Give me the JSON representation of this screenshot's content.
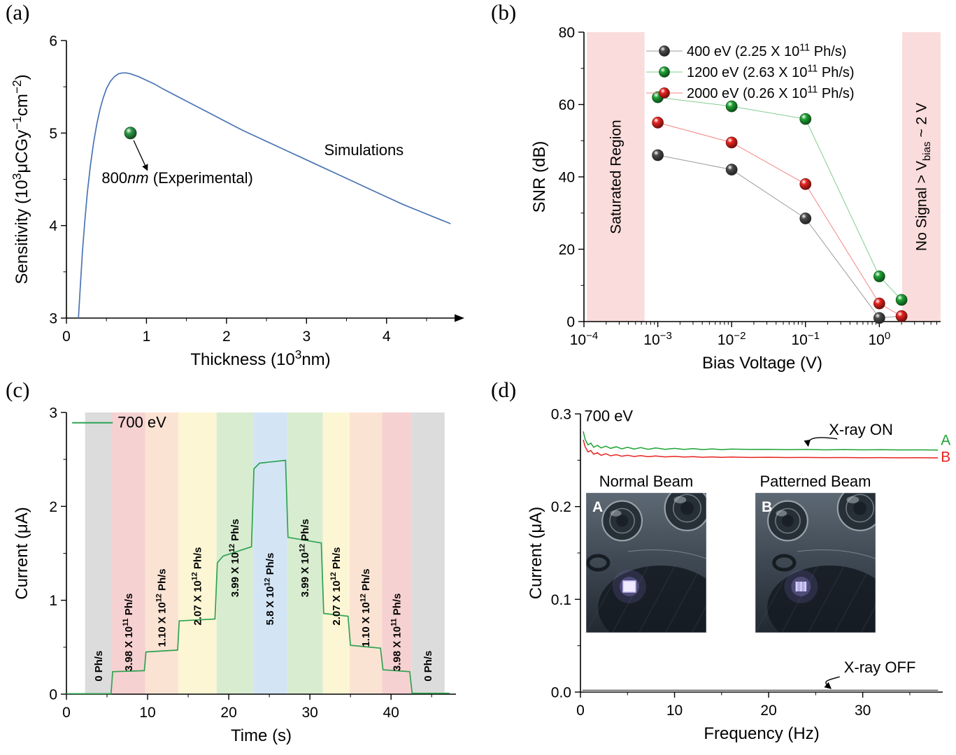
{
  "figure": {
    "background": "#ffffff"
  },
  "chart_data": [
    {
      "id": "a",
      "panel_label": "(a)",
      "type": "line",
      "xlabel_rich": [
        {
          "t": "Thickness (10"
        },
        {
          "t": "3",
          "sup": true
        },
        {
          "t": "nm)"
        }
      ],
      "ylabel_rich": [
        {
          "t": "Sensitivity (10"
        },
        {
          "t": "3",
          "sup": true
        },
        {
          "t": "μCGy"
        },
        {
          "t": "−1",
          "sup": true
        },
        {
          "t": "cm"
        },
        {
          "t": "−2",
          "sup": true
        },
        {
          "t": ")"
        }
      ],
      "xlim": [
        0,
        4.85
      ],
      "ylim": [
        3,
        6
      ],
      "xticks": [
        0,
        1,
        2,
        3,
        4
      ],
      "xtick_labels": [
        "0",
        "1",
        "2",
        "3",
        "4"
      ],
      "yticks": [
        3,
        4,
        5,
        6
      ],
      "ytick_labels": [
        "3",
        "4",
        "5",
        "6"
      ],
      "xminor_step": 0.5,
      "yminor_step": 0.5,
      "line_color": "#4a74b4",
      "simulation": {
        "x": [
          0.15,
          0.17,
          0.2,
          0.23,
          0.26,
          0.3,
          0.34,
          0.38,
          0.42,
          0.46,
          0.5,
          0.55,
          0.6,
          0.65,
          0.7,
          0.75,
          0.8,
          0.9,
          1.0,
          1.1,
          1.2,
          1.4,
          1.6,
          1.8,
          2.0,
          2.2,
          2.4,
          2.6,
          2.8,
          3.0,
          3.2,
          3.4,
          3.6,
          3.8,
          4.0,
          4.2,
          4.4,
          4.6,
          4.8
        ],
        "y": [
          3.0,
          3.3,
          3.72,
          4.05,
          4.35,
          4.65,
          4.9,
          5.1,
          5.26,
          5.38,
          5.48,
          5.56,
          5.61,
          5.64,
          5.65,
          5.65,
          5.64,
          5.61,
          5.57,
          5.53,
          5.48,
          5.39,
          5.3,
          5.21,
          5.12,
          5.03,
          4.95,
          4.87,
          4.79,
          4.71,
          4.63,
          4.55,
          4.47,
          4.39,
          4.31,
          4.23,
          4.16,
          4.09,
          4.02
        ]
      },
      "experimental_point": {
        "x": 0.8,
        "y": 5.0,
        "color": "#2f9e49"
      },
      "labels": {
        "simulations": {
          "text": "Simulations",
          "x": 3.22,
          "y": 4.76
        },
        "experimental_rich": [
          {
            "t": "800"
          },
          {
            "t": "nm",
            "italic": true
          },
          {
            "t": " (Experimental)"
          }
        ],
        "experimental_pos": {
          "x": 0.44,
          "y": 4.46
        }
      },
      "arrow": {
        "x1": 0.84,
        "y1": 4.92,
        "x2": 1.01,
        "y2": 4.6
      }
    },
    {
      "id": "b",
      "panel_label": "(b)",
      "type": "scatter",
      "xscale": "log",
      "xlabel": "Bias Voltage (V)",
      "ylabel": "SNR (dB)",
      "xlim_exp": [
        -4,
        0.83
      ],
      "ylim": [
        0,
        80
      ],
      "xtick_exps": [
        -4,
        -3,
        -2,
        -1,
        0
      ],
      "yticks": [
        0,
        20,
        40,
        60,
        80
      ],
      "ytick_labels": [
        "0",
        "20",
        "40",
        "60",
        "80"
      ],
      "x_values": [
        0.001,
        0.01,
        0.1,
        1,
        2
      ],
      "series": [
        {
          "name_rich": [
            {
              "t": "400 eV (2.25 X 10"
            },
            {
              "t": "11",
              "sup": true
            },
            {
              "t": " Ph/s)"
            }
          ],
          "color": "#4a4a4a",
          "snr_db": [
            46,
            42,
            28.5,
            1,
            1.5
          ]
        },
        {
          "name_rich": [
            {
              "t": "1200 eV (2.63 X 10"
            },
            {
              "t": "11",
              "sup": true
            },
            {
              "t": " Ph/s)"
            }
          ],
          "color": "#1ea334",
          "snr_db": [
            62,
            59.5,
            56,
            12.5,
            6
          ]
        },
        {
          "name_rich": [
            {
              "t": "2000 eV (0.26 X 10"
            },
            {
              "t": "11",
              "sup": true
            },
            {
              "t": " Ph/s)"
            }
          ],
          "color": "#e8231f",
          "snr_db": [
            55,
            49.5,
            38,
            5,
            1.5
          ]
        }
      ],
      "shaded_regions": [
        {
          "label_rich": [
            {
              "t": "Saturated Region"
            }
          ],
          "x0_exp": -3.96,
          "x1_exp": -3.18,
          "color": "#fadcdc"
        },
        {
          "label_rich": [
            {
              "t": "No Signal > V"
            },
            {
              "t": "bias",
              "sub": true
            },
            {
              "t": " ~ 2 V"
            }
          ],
          "x0_exp": 0.31,
          "x1_exp": 0.83,
          "color": "#fadcdc"
        }
      ]
    },
    {
      "id": "c",
      "panel_label": "(c)",
      "type": "line",
      "xlabel": "Time (s)",
      "ylabel": "Current (μA)",
      "xlim": [
        0,
        48
      ],
      "ylim": [
        0,
        3
      ],
      "xticks": [
        0,
        10,
        20,
        30,
        40
      ],
      "xtick_labels": [
        "0",
        "10",
        "20",
        "30",
        "40"
      ],
      "yticks": [
        0,
        1,
        2,
        3
      ],
      "ytick_labels": [
        "0",
        "1",
        "2",
        "3"
      ],
      "xminor_step": 5,
      "yminor_step": 0.5,
      "legend": {
        "label": "700 eV",
        "color": "#2fa352"
      },
      "line_color": "#2fa352",
      "flux_bands": [
        {
          "t0": 2.3,
          "t1": 5.6,
          "color": "#dcdcdc",
          "label_rich": [
            {
              "t": "0 Ph/s"
            }
          ],
          "label_yc": 0.3
        },
        {
          "t0": 5.6,
          "t1": 9.7,
          "color": "#f6d1d1",
          "label_rich": [
            {
              "t": "3.98 X 10"
            },
            {
              "t": "11",
              "sup": true
            },
            {
              "t": " Ph/s"
            }
          ],
          "label_yc": 0.66
        },
        {
          "t0": 9.7,
          "t1": 13.8,
          "color": "#fbe3d4",
          "label_rich": [
            {
              "t": "1.10 X 10"
            },
            {
              "t": "12",
              "sup": true
            },
            {
              "t": " Ph/s"
            }
          ],
          "label_yc": 0.92
        },
        {
          "t0": 13.8,
          "t1": 18.5,
          "color": "#fcf6d4",
          "label_rich": [
            {
              "t": "2.07 X 10"
            },
            {
              "t": "12",
              "sup": true
            },
            {
              "t": " Ph/s"
            }
          ],
          "label_yc": 1.15
        },
        {
          "t0": 18.5,
          "t1": 23.0,
          "color": "#d8ecd0",
          "label_rich": [
            {
              "t": "3.99 X 10"
            },
            {
              "t": "12",
              "sup": true
            },
            {
              "t": " Ph/s"
            }
          ],
          "label_yc": 1.45
        },
        {
          "t0": 23.0,
          "t1": 27.2,
          "color": "#d3e5f5",
          "label_rich": [
            {
              "t": "5.8 X 10"
            },
            {
              "t": "12",
              "sup": true
            },
            {
              "t": " Ph/s"
            }
          ],
          "label_yc": 1.12
        },
        {
          "t0": 27.2,
          "t1": 31.6,
          "color": "#d8ecd0",
          "label_rich": [
            {
              "t": "3.99 X 10"
            },
            {
              "t": "12",
              "sup": true
            },
            {
              "t": " Ph/s"
            }
          ],
          "label_yc": 1.45
        },
        {
          "t0": 31.6,
          "t1": 34.9,
          "color": "#fcf6d4",
          "label_rich": [
            {
              "t": "2.07 X 10"
            },
            {
              "t": "12",
              "sup": true
            },
            {
              "t": " Ph/s"
            }
          ],
          "label_yc": 1.15
        },
        {
          "t0": 34.9,
          "t1": 38.9,
          "color": "#fbe3d4",
          "label_rich": [
            {
              "t": "1.10 X 10"
            },
            {
              "t": "12",
              "sup": true
            },
            {
              "t": " Ph/s"
            }
          ],
          "label_yc": 0.92
        },
        {
          "t0": 38.9,
          "t1": 42.5,
          "color": "#f6d1d1",
          "label_rich": [
            {
              "t": "3.98 X 10"
            },
            {
              "t": "11",
              "sup": true
            },
            {
              "t": " Ph/s"
            }
          ],
          "label_yc": 0.66
        },
        {
          "t0": 42.5,
          "t1": 46.6,
          "color": "#dcdcdc",
          "label_rich": [
            {
              "t": "0 Ph/s"
            }
          ],
          "label_yc": 0.3
        }
      ],
      "current_trace": {
        "t": [
          0,
          5.5,
          5.7,
          9.6,
          9.8,
          13.7,
          13.9,
          18.3,
          18.6,
          19.3,
          22.8,
          23.1,
          23.8,
          27.0,
          27.3,
          31.4,
          31.7,
          34.7,
          35.0,
          38.7,
          39.0,
          42.3,
          42.6,
          47.2
        ],
        "i": [
          0.005,
          0.005,
          0.24,
          0.25,
          0.45,
          0.47,
          0.78,
          0.8,
          1.4,
          1.47,
          1.57,
          2.4,
          2.46,
          2.49,
          1.67,
          1.61,
          0.86,
          0.83,
          0.52,
          0.49,
          0.26,
          0.24,
          0.01,
          0.01
        ]
      }
    },
    {
      "id": "d",
      "panel_label": "(d)",
      "type": "line",
      "xlabel": "Frequency (Hz)",
      "ylabel": "Current (μA)",
      "xlim": [
        0,
        38.5
      ],
      "ylim": [
        0,
        0.3
      ],
      "xticks": [
        0,
        10,
        20,
        30
      ],
      "xtick_labels": [
        "0",
        "10",
        "20",
        "30"
      ],
      "yticks": [
        0,
        0.1,
        0.2,
        0.3
      ],
      "ytick_labels": [
        "0.0",
        "0.1",
        "0.2",
        "0.3"
      ],
      "xminor_step": 5,
      "yminor_step": 0.05,
      "energy_label": "700 eV",
      "series": [
        {
          "name": "A",
          "color": "#1ea334",
          "x": [
            0.3,
            0.5,
            0.8,
            1.1,
            1.4,
            1.8,
            2.2,
            2.7,
            3.2,
            3.8,
            4.4,
            5.0,
            5.7,
            6.4,
            7.2,
            8.0,
            9.0,
            10,
            11,
            12,
            13,
            14,
            15,
            16,
            18,
            20,
            22,
            24,
            26,
            28,
            30,
            32,
            34,
            36,
            38
          ],
          "y": [
            0.281,
            0.2725,
            0.2665,
            0.2685,
            0.264,
            0.266,
            0.2632,
            0.2652,
            0.2628,
            0.2645,
            0.2622,
            0.264,
            0.262,
            0.2636,
            0.2618,
            0.2632,
            0.2617,
            0.2628,
            0.2616,
            0.2625,
            0.2615,
            0.2622,
            0.2614,
            0.262,
            0.2616,
            0.2618,
            0.2613,
            0.2616,
            0.2612,
            0.2615,
            0.2612,
            0.2614,
            0.2611,
            0.2612,
            0.261
          ]
        },
        {
          "name": "B",
          "color": "#e8231f",
          "x": [
            0.3,
            0.5,
            0.8,
            1.1,
            1.4,
            1.8,
            2.2,
            2.7,
            3.2,
            3.8,
            4.4,
            5.0,
            5.7,
            6.4,
            7.2,
            8.0,
            9.0,
            10,
            11,
            12,
            13,
            14,
            15,
            16,
            18,
            20,
            22,
            24,
            26,
            28,
            30,
            32,
            34,
            36,
            38
          ],
          "y": [
            0.272,
            0.2645,
            0.259,
            0.2605,
            0.2565,
            0.258,
            0.2553,
            0.257,
            0.2548,
            0.256,
            0.2543,
            0.2554,
            0.254,
            0.255,
            0.2538,
            0.2546,
            0.2536,
            0.2542,
            0.2534,
            0.2539,
            0.2532,
            0.2536,
            0.2531,
            0.2534,
            0.253,
            0.2532,
            0.2529,
            0.253,
            0.2528,
            0.2529,
            0.2527,
            0.2528,
            0.2526,
            0.2527,
            0.2525
          ]
        },
        {
          "name": "X-ray OFF baseline",
          "color": "#2b2b2b",
          "x": [
            0.2,
            38
          ],
          "y": [
            0.002,
            0.002
          ]
        }
      ],
      "line_labels": [
        {
          "text": "A",
          "x": 38.3,
          "y": 0.2665,
          "color": "#1ea334"
        },
        {
          "text": "B",
          "x": 38.3,
          "y": 0.2485,
          "color": "#e8231f"
        }
      ],
      "annotations": [
        {
          "text": "X-ray ON",
          "x": 26.4,
          "y": 0.2775,
          "arrow_to_x": 24.2,
          "arrow_to_y": 0.2655
        },
        {
          "text": "X-ray OFF",
          "x": 28.0,
          "y": 0.021,
          "arrow_to_x": 26.6,
          "arrow_to_y": 0.004
        }
      ],
      "insets": [
        {
          "title": "Normal Beam",
          "letter": "A"
        },
        {
          "title": "Patterned Beam",
          "letter": "B"
        }
      ]
    }
  ]
}
